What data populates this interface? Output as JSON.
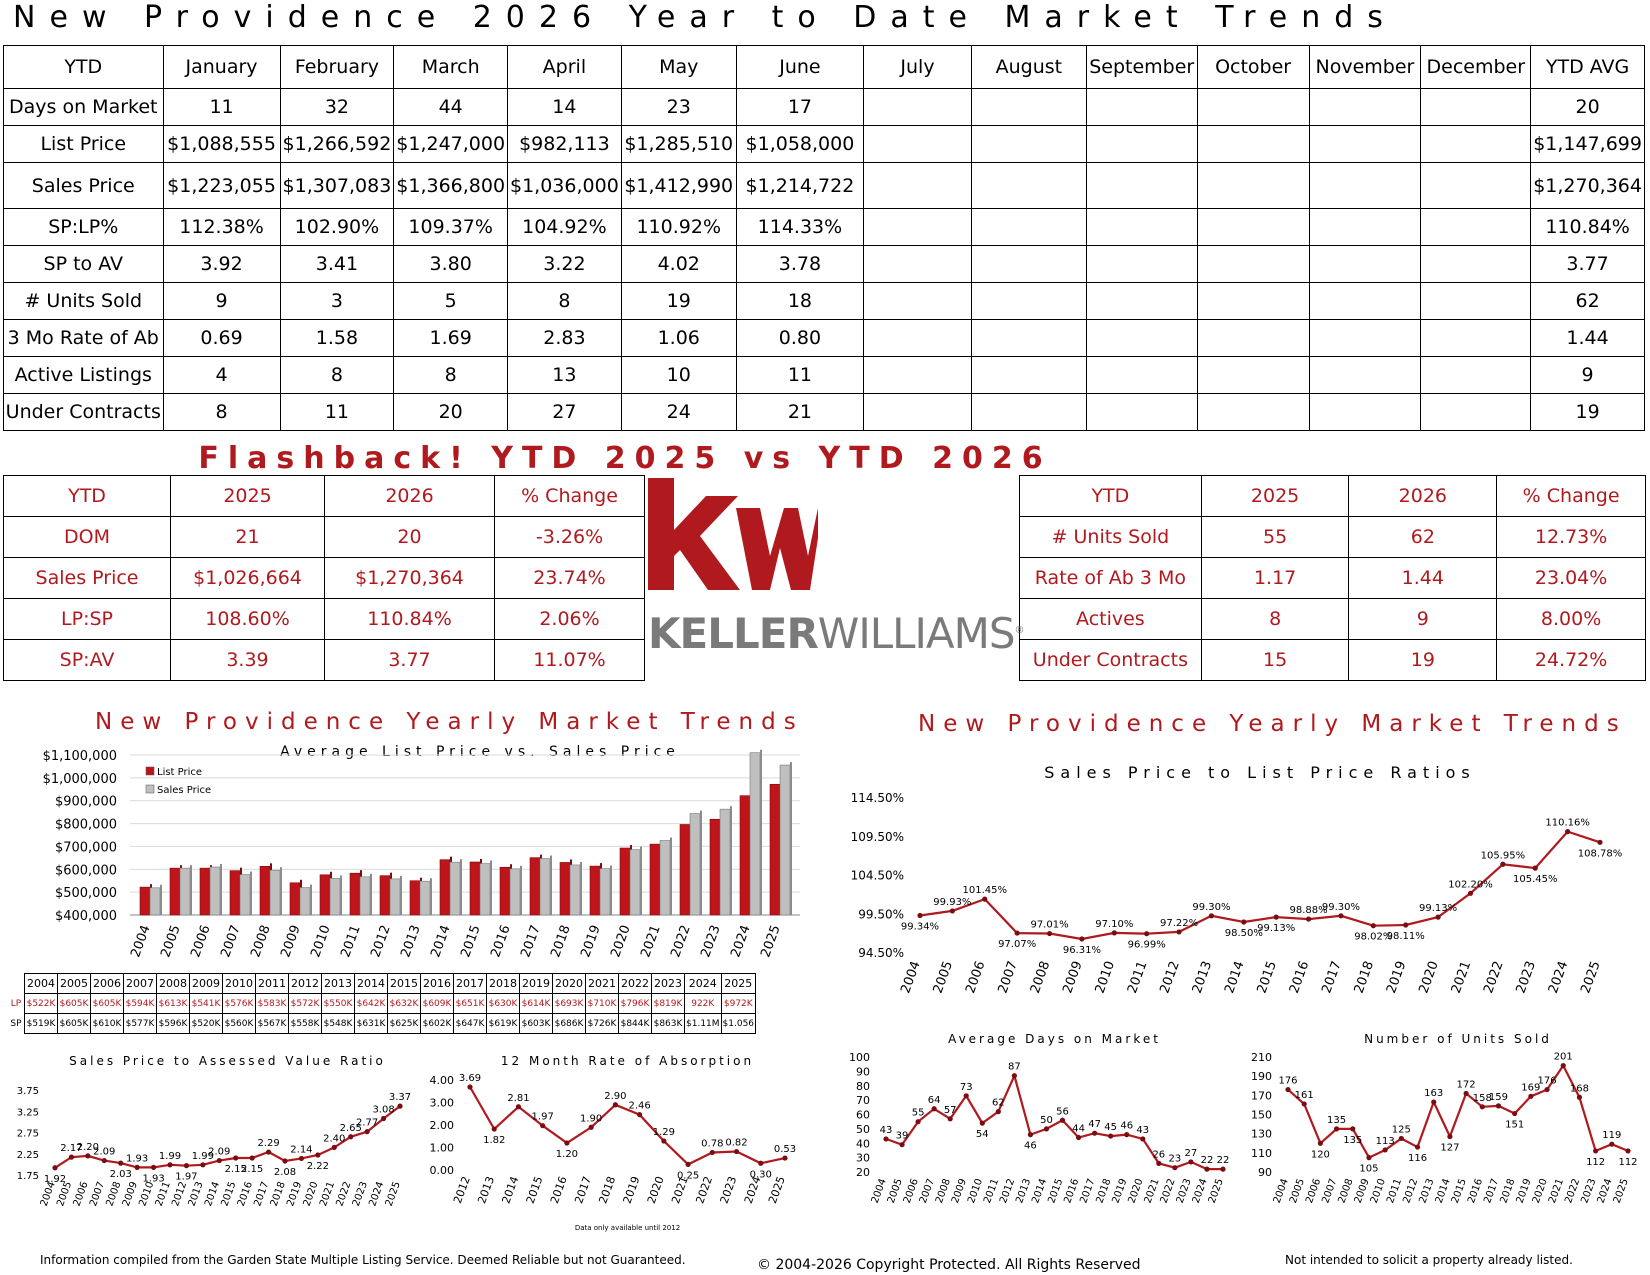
{
  "page_title": "New Providence 2026 Year to Date Market Trends",
  "ytd_table": {
    "header": [
      "YTD",
      "January",
      "February",
      "March",
      "April",
      "May",
      "June",
      "July",
      "August",
      "September",
      "October",
      "November",
      "December",
      "YTD AVG"
    ],
    "rows": [
      {
        "label": "Days on Market",
        "values": [
          "11",
          "32",
          "44",
          "14",
          "23",
          "17",
          "",
          "",
          "",
          "",
          "",
          ""
        ],
        "avg": "20"
      },
      {
        "label": "List Price",
        "values": [
          "$1,088,555",
          "$1,266,592",
          "$1,247,000",
          "$982,113",
          "$1,285,510",
          "$1,058,000",
          "",
          "",
          "",
          "",
          "",
          ""
        ],
        "avg": "$1,147,699"
      },
      {
        "label": "Sales Price",
        "values": [
          "$1,223,055",
          "$1,307,083",
          "$1,366,800",
          "$1,036,000",
          "$1,412,990",
          "$1,214,722",
          "",
          "",
          "",
          "",
          "",
          ""
        ],
        "avg": "$1,270,364"
      },
      {
        "label": "SP:LP%",
        "values": [
          "112.38%",
          "102.90%",
          "109.37%",
          "104.92%",
          "110.92%",
          "114.33%",
          "",
          "",
          "",
          "",
          "",
          ""
        ],
        "avg": "110.84%"
      },
      {
        "label": "SP to AV",
        "values": [
          "3.92",
          "3.41",
          "3.80",
          "3.22",
          "4.02",
          "3.78",
          "",
          "",
          "",
          "",
          "",
          ""
        ],
        "avg": "3.77"
      },
      {
        "label": "# Units Sold",
        "values": [
          "9",
          "3",
          "5",
          "8",
          "19",
          "18",
          "",
          "",
          "",
          "",
          "",
          ""
        ],
        "avg": "62"
      },
      {
        "label": "3 Mo Rate of Ab",
        "values": [
          "0.69",
          "1.58",
          "1.69",
          "2.83",
          "1.06",
          "0.80",
          "",
          "",
          "",
          "",
          "",
          ""
        ],
        "avg": "1.44"
      },
      {
        "label": "Active Listings",
        "values": [
          "4",
          "8",
          "8",
          "13",
          "10",
          "11",
          "",
          "",
          "",
          "",
          "",
          ""
        ],
        "avg": "9"
      },
      {
        "label": "Under Contracts",
        "values": [
          "8",
          "11",
          "20",
          "27",
          "24",
          "21",
          "",
          "",
          "",
          "",
          "",
          ""
        ],
        "avg": "19"
      }
    ]
  },
  "flashback": {
    "title": "Flashback!  YTD 2025 vs YTD 2026",
    "left": {
      "header": [
        "YTD",
        "2025",
        "2026",
        "% Change"
      ],
      "rows": [
        [
          "DOM",
          "21",
          "20",
          "-3.26%"
        ],
        [
          "Sales Price",
          "$1,026,664",
          "$1,270,364",
          "23.74%"
        ],
        [
          "LP:SP",
          "108.60%",
          "110.84%",
          "2.06%"
        ],
        [
          "SP:AV",
          "3.39",
          "3.77",
          "11.07%"
        ]
      ]
    },
    "right": {
      "header": [
        "YTD",
        "2025",
        "2026",
        "% Change"
      ],
      "rows": [
        [
          "# Units Sold",
          "55",
          "62",
          "12.73%"
        ],
        [
          "Rate of Ab 3 Mo",
          "1.17",
          "1.44",
          "23.04%"
        ],
        [
          "Actives",
          "8",
          "9",
          "8.00%"
        ],
        [
          "Under Contracts",
          "15",
          "19",
          "24.72%"
        ]
      ]
    }
  },
  "logo": {
    "mark": "kw",
    "word_bold": "KELLER",
    "word_light": "WILLIAMS",
    "reg": "®",
    "colors": {
      "red": "#b0191e",
      "gray": "#7a7a7a"
    }
  },
  "section_titles": {
    "left": "New Providence Yearly Market Trends",
    "right": "New Providence Yearly Market Trends"
  },
  "lp_sp_table": {
    "years": [
      "2004",
      "2005",
      "2006",
      "2007",
      "2008",
      "2009",
      "2010",
      "2011",
      "2012",
      "2013",
      "2014",
      "2015",
      "2016",
      "2017",
      "2018",
      "2019",
      "2020",
      "2021",
      "2022",
      "2023",
      "2024",
      "2025"
    ],
    "lp_label": "LP",
    "sp_label": "SP",
    "lp": [
      "$522K",
      "$605K",
      "$605K",
      "$594K",
      "$613K",
      "$541K",
      "$576K",
      "$583K",
      "$572K",
      "$550K",
      "$642K",
      "$632K",
      "$609K",
      "$651K",
      "$630K",
      "$614K",
      "$693K",
      "$710K",
      "$796K",
      "$819K",
      "922K",
      "$972K"
    ],
    "sp": [
      "$519K",
      "$605K",
      "$610K",
      "$577K",
      "$596K",
      "$520K",
      "$560K",
      "$567K",
      "$558K",
      "$548K",
      "$631K",
      "$625K",
      "$602K",
      "$647K",
      "$619K",
      "$603K",
      "$686K",
      "$726K",
      "$844K",
      "$863K",
      "$1.11M",
      "$1.056"
    ]
  },
  "footer": {
    "left": "Information compiled from the Garden State Multiple Listing Service.  Deemed Reliable but not Guaranteed.",
    "center": "© 2004-2026 Copyright Protected.  All Rights Reserved",
    "right": "Not intended to solicit a property already listed."
  },
  "chart_data": [
    {
      "id": "avg-list-vs-sales",
      "type": "bar",
      "title": "Average List Price vs. Sales Price",
      "categories": [
        "2004",
        "2005",
        "2006",
        "2007",
        "2008",
        "2009",
        "2010",
        "2011",
        "2012",
        "2013",
        "2014",
        "2015",
        "2016",
        "2017",
        "2018",
        "2019",
        "2020",
        "2021",
        "2022",
        "2023",
        "2024",
        "2025"
      ],
      "series": [
        {
          "name": "List Price",
          "color": "#c0141b",
          "values": [
            522000,
            605000,
            605000,
            594000,
            613000,
            541000,
            576000,
            583000,
            572000,
            550000,
            642000,
            632000,
            609000,
            651000,
            630000,
            614000,
            693000,
            710000,
            796000,
            819000,
            922000,
            972000
          ]
        },
        {
          "name": "Sales Price",
          "color": "#bfbfbf",
          "values": [
            519000,
            605000,
            610000,
            577000,
            596000,
            520000,
            560000,
            567000,
            558000,
            548000,
            631000,
            625000,
            602000,
            647000,
            619000,
            603000,
            686000,
            726000,
            844000,
            863000,
            1110000,
            1056000
          ]
        }
      ],
      "yticks": [
        "$400,000",
        "$500,000",
        "$600,000",
        "$700,000",
        "$800,000",
        "$900,000",
        "$1,000,000",
        "$1,100,000"
      ],
      "ylim": [
        400000,
        1100000
      ],
      "legend": "top-left"
    },
    {
      "id": "sp-lp-ratio",
      "type": "line",
      "title": "Sales Price to List Price Ratios",
      "x": [
        "2004",
        "2005",
        "2006",
        "2007",
        "2008",
        "2009",
        "2010",
        "2011",
        "2012",
        "2013",
        "2014",
        "2015",
        "2016",
        "2017",
        "2018",
        "2019",
        "2020",
        "2021",
        "2022",
        "2023",
        "2024",
        "2025"
      ],
      "values": [
        99.34,
        99.93,
        101.45,
        97.07,
        97.01,
        96.31,
        97.1,
        96.99,
        97.22,
        99.3,
        98.5,
        99.13,
        98.88,
        99.3,
        98.02,
        98.11,
        99.13,
        102.2,
        105.95,
        105.45,
        110.16,
        108.78
      ],
      "labels": [
        "99.34%",
        "99.93%",
        "101.45%",
        "97.07%",
        "97.01%",
        "96.31%",
        "97.10%",
        "96.99%",
        "97.22%",
        "99.30%",
        "98.50%",
        "99.13%",
        "98.88%",
        "99.30%",
        "98.02%",
        "98.11%",
        "99.13%",
        "102.20%",
        "105.95%",
        "105.45%",
        "110.16%",
        "108.78%"
      ],
      "yticks": [
        "94.50%",
        "99.50%",
        "104.50%",
        "109.50%",
        "114.50%"
      ],
      "ylim": [
        94.5,
        114.5
      ]
    },
    {
      "id": "sp-av-ratio",
      "type": "line",
      "title": "Sales Price to Assessed Value Ratio",
      "x": [
        "2004",
        "2005",
        "2006",
        "2007",
        "2008",
        "2009",
        "2010",
        "2011",
        "2012",
        "2013",
        "2014",
        "2015",
        "2016",
        "2017",
        "2018",
        "2019",
        "2020",
        "2021",
        "2022",
        "2023",
        "2024",
        "2025"
      ],
      "values": [
        1.92,
        2.17,
        2.2,
        2.09,
        2.03,
        1.93,
        1.93,
        1.99,
        1.97,
        1.99,
        2.09,
        2.15,
        2.15,
        2.29,
        2.08,
        2.14,
        2.22,
        2.4,
        2.65,
        2.77,
        3.08,
        3.37
      ],
      "labels": [
        "1.92",
        "2.17",
        "2.20",
        "2.09",
        "2.03",
        "1.93",
        "1.93",
        "1.99",
        "1.97",
        "1.99",
        "2.09",
        "2.15",
        "2.15",
        "2.29",
        "2.08",
        "2.14",
        "2.22",
        "2.40",
        "2.65",
        "2.77",
        "3.08",
        "3.37"
      ],
      "yticks": [
        "1.75",
        "2.25",
        "2.75",
        "3.25",
        "3.75"
      ],
      "ylim": [
        1.75,
        3.75
      ]
    },
    {
      "id": "rate-of-absorption",
      "type": "line",
      "title": "12 Month Rate of Absorption",
      "x": [
        "2012",
        "2013",
        "2014",
        "2015",
        "2016",
        "2017",
        "2018",
        "2019",
        "2020",
        "2021",
        "2022",
        "2023",
        "2024",
        "2025"
      ],
      "values": [
        3.69,
        1.82,
        2.81,
        1.97,
        1.2,
        1.9,
        2.9,
        2.46,
        1.29,
        0.25,
        0.78,
        0.82,
        0.3,
        0.53
      ],
      "labels": [
        "3.69",
        "1.82",
        "2.81",
        "1.97",
        "1.20",
        "1.90",
        "2.90",
        "2.46",
        "1.29",
        "0.25",
        "0.78",
        "0.82",
        "0.30",
        "0.53"
      ],
      "yticks": [
        "0.00",
        "1.00",
        "2.00",
        "3.00",
        "4.00"
      ],
      "ylim": [
        0,
        4
      ],
      "note": "Data only available until 2012"
    },
    {
      "id": "avg-days-on-market",
      "type": "line",
      "title": "Average Days on Market",
      "x": [
        "2004",
        "2005",
        "2006",
        "2007",
        "2008",
        "2009",
        "2010",
        "2011",
        "2012",
        "2013",
        "2014",
        "2015",
        "2016",
        "2017",
        "2018",
        "2019",
        "2020",
        "2021",
        "2022",
        "2023",
        "2024",
        "2025"
      ],
      "values": [
        43,
        39,
        55,
        64,
        57,
        73,
        54,
        62,
        87,
        46,
        50,
        56,
        44,
        47,
        45,
        46,
        43,
        26,
        23,
        27,
        22,
        22
      ],
      "labels": [
        "43",
        "39",
        "55",
        "64",
        "57",
        "73",
        "54",
        "62",
        "87",
        "46",
        "50",
        "56",
        "44",
        "47",
        "45",
        "46",
        "43",
        "26",
        "23",
        "27",
        "22",
        "22"
      ],
      "yticks": [
        "20",
        "30",
        "40",
        "50",
        "60",
        "70",
        "80",
        "90",
        "100"
      ],
      "ylim": [
        20,
        100
      ]
    },
    {
      "id": "units-sold",
      "type": "line",
      "title": "Number of Units Sold",
      "x": [
        "2004",
        "2005",
        "2006",
        "2007",
        "2008",
        "2009",
        "2010",
        "2011",
        "2012",
        "2013",
        "2014",
        "2015",
        "2016",
        "2017",
        "2018",
        "2019",
        "2020",
        "2021",
        "2022",
        "2023",
        "2024",
        "2025"
      ],
      "values": [
        176,
        161,
        120,
        135,
        135,
        105,
        113,
        125,
        116,
        163,
        127,
        172,
        158,
        159,
        151,
        169,
        176,
        201,
        168,
        112,
        119,
        112
      ],
      "labels": [
        "176",
        "161",
        "120",
        "135",
        "135",
        "105",
        "113",
        "125",
        "116",
        "163",
        "127",
        "172",
        "158",
        "159",
        "151",
        "169",
        "176",
        "201",
        "168",
        "112",
        "119",
        "112"
      ],
      "yticks": [
        "90",
        "110",
        "130",
        "150",
        "170",
        "190",
        "210"
      ],
      "ylim": [
        90,
        210
      ]
    }
  ]
}
